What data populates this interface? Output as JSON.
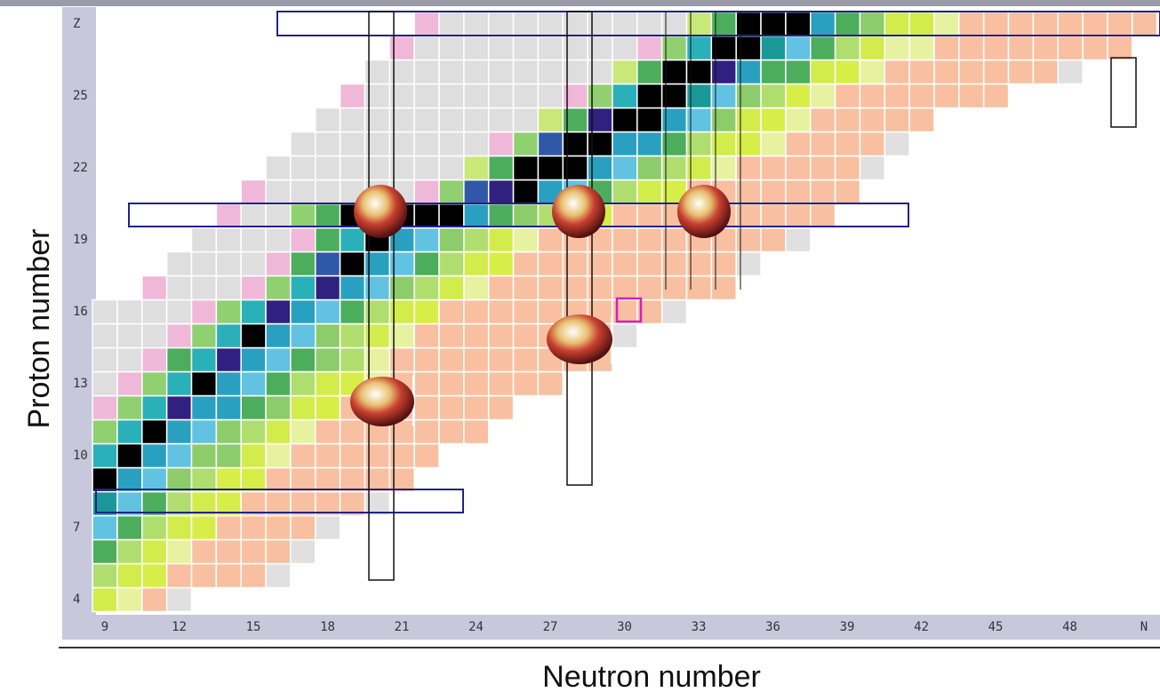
{
  "y_axis": {
    "label": "Proton number",
    "ticks": [
      "4",
      "7",
      "10",
      "13",
      "16",
      "19",
      "22",
      "25",
      "Z"
    ]
  },
  "x_axis": {
    "label": "Neutron number",
    "ticks": [
      "9",
      "12",
      "15",
      "18",
      "21",
      "24",
      "27",
      "30",
      "33",
      "36",
      "39",
      "42",
      "45",
      "48",
      "N"
    ]
  }
}
